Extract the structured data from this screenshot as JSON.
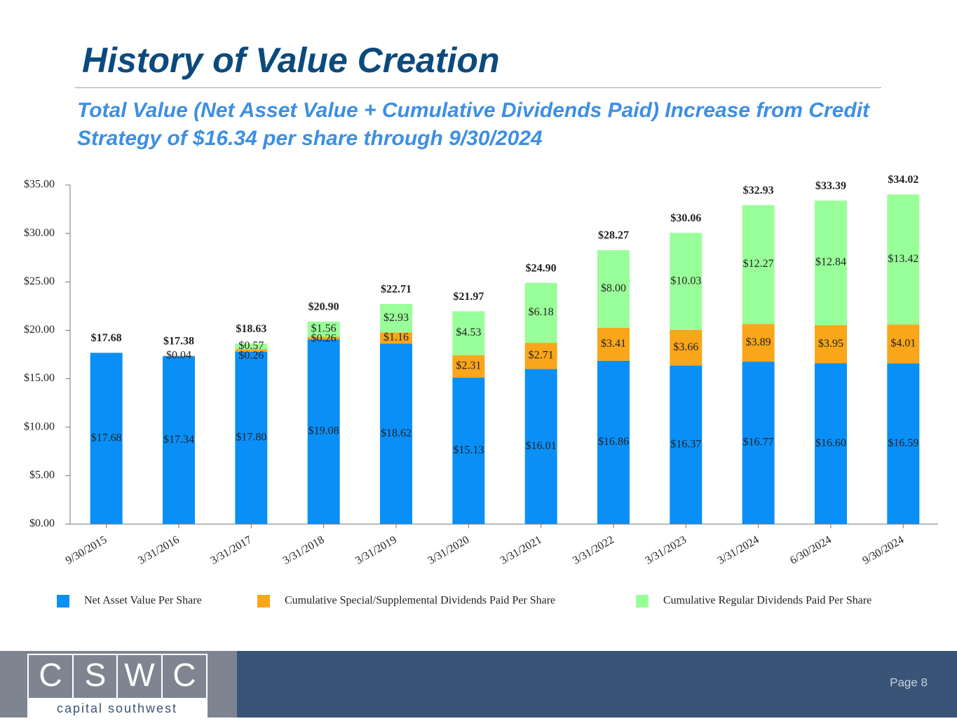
{
  "chart_data": {
    "type": "stacked-bar",
    "title": "History of Value Creation",
    "subtitle": "Total Value (Net Asset Value + Cumulative Dividends Paid) Increase from Credit Strategy of $16.34 per share through 9/30/2024",
    "categories": [
      "9/30/2015",
      "3/31/2016",
      "3/31/2017",
      "3/31/2018",
      "3/31/2019",
      "3/31/2020",
      "3/31/2021",
      "3/31/2022",
      "3/31/2023",
      "3/31/2024",
      "6/30/2024",
      "9/30/2024"
    ],
    "series": [
      {
        "name": "Net Asset Value Per Share",
        "color": "#0a8ff7",
        "values": [
          17.68,
          17.34,
          17.8,
          19.08,
          18.62,
          15.13,
          16.01,
          16.86,
          16.37,
          16.77,
          16.6,
          16.59
        ],
        "value_labels": [
          "$17.68",
          "$17.34",
          "$17.80",
          "$19.08",
          "$18.62",
          "$15.13",
          "$16.01",
          "$16.86",
          "$16.37",
          "$16.77",
          "$16.60",
          "$16.59"
        ]
      },
      {
        "name": "Cumulative Special/Supplemental Dividends Paid Per Share",
        "color": "#f9a61a",
        "values": [
          null,
          0.04,
          0.26,
          0.26,
          1.16,
          2.31,
          2.71,
          3.41,
          3.66,
          3.89,
          3.95,
          4.01
        ],
        "value_labels": [
          null,
          "$0.04",
          "$0.26",
          "$0.26",
          "$1.16",
          "$2.31",
          "$2.71",
          "$3.41",
          "$3.66",
          "$3.89",
          "$3.95",
          "$4.01"
        ]
      },
      {
        "name": "Cumulative Regular Dividends Paid Per Share",
        "color": "#99ff99",
        "values": [
          null,
          null,
          0.57,
          1.56,
          2.93,
          4.53,
          6.18,
          8.0,
          10.03,
          12.27,
          12.84,
          13.42
        ],
        "value_labels": [
          null,
          null,
          "$0.57",
          "$1.56",
          "$2.93",
          "$4.53",
          "$6.18",
          "$8.00",
          "$10.03",
          "$12.27",
          "$12.84",
          "$13.42"
        ]
      }
    ],
    "totals": [
      17.68,
      17.38,
      18.63,
      20.9,
      22.71,
      21.97,
      24.9,
      28.27,
      30.06,
      32.93,
      33.39,
      34.02
    ],
    "total_labels": [
      "$17.68",
      "$17.38",
      "$18.63",
      "$20.90",
      "$22.71",
      "$21.97",
      "$24.90",
      "$28.27",
      "$30.06",
      "$32.93",
      "$33.39",
      "$34.02"
    ],
    "ylim": [
      0,
      35
    ],
    "yticks": [
      {
        "value": 0,
        "label": "$0.00"
      },
      {
        "value": 5,
        "label": "$5.00"
      },
      {
        "value": 10,
        "label": "$10.00"
      },
      {
        "value": 15,
        "label": "$15.00"
      },
      {
        "value": 20,
        "label": "$20.00"
      },
      {
        "value": 25,
        "label": "$25.00"
      },
      {
        "value": 30,
        "label": "$30.00"
      },
      {
        "value": 35,
        "label": "$35.00"
      }
    ],
    "grid": false,
    "legend": "bottom"
  },
  "footer": {
    "logo_letters": [
      "C",
      "S",
      "W",
      "C"
    ],
    "logo_text": "capital southwest",
    "page": "Page 8"
  }
}
